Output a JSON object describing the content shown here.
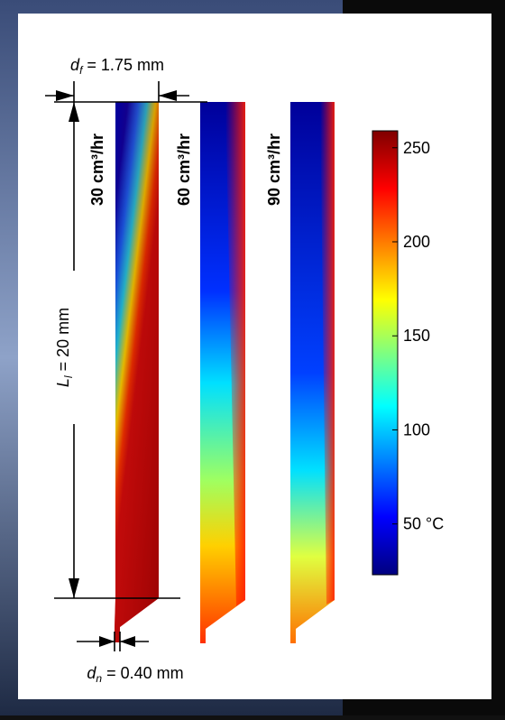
{
  "labels": {
    "feed_diameter": {
      "symbol": "d",
      "subscript": "f",
      "text": " = 1.75 mm"
    },
    "liquefier_length": {
      "symbol": "L",
      "subscript": "l",
      "text": " = 20 mm"
    },
    "nozzle_diameter": {
      "symbol": "d",
      "subscript": "n",
      "text": " = 0.40 mm"
    }
  },
  "flow_rates": [
    "30 cm³/hr",
    "60 cm³/hr",
    "90 cm³/hr"
  ],
  "colorbar": {
    "ylim": [
      23,
      259
    ],
    "yticks": [
      {
        "value": 50,
        "label": "50 °C"
      },
      100,
      150,
      200,
      250
    ]
  }
}
